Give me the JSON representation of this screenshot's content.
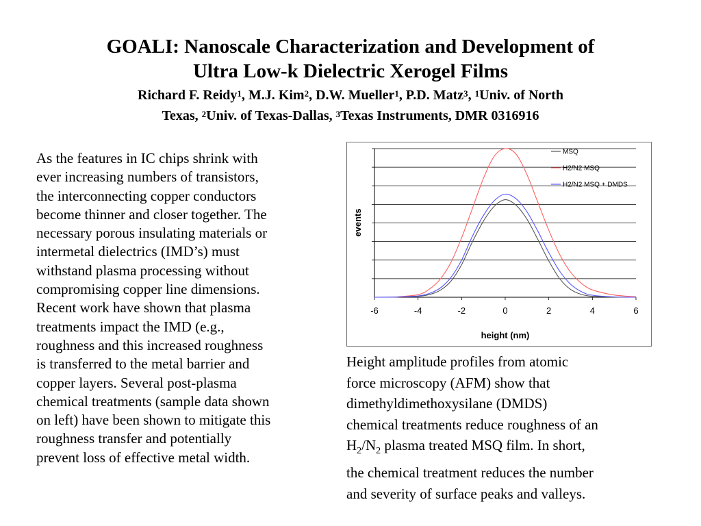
{
  "slide": {
    "title_line1": "GOALI: Nanoscale Characterization and Development of",
    "title_line2": "Ultra Low-k Dielectric Xerogel Films",
    "authors": {
      "a1_name": "Richard F. Reidy",
      "a1_sup": "1",
      "a2_name": ", M.J. Kim",
      "a2_sup": "2",
      "a3_name": ", D.W. Mueller",
      "a3_sup": "1",
      "a4_name": ", P.D. Matz",
      "a4_sup": "3",
      "sep": ", ",
      "aff1_sup": "1",
      "aff1": "Univ. of North",
      "aff1_cont": "Texas, ",
      "aff2_sup": "2",
      "aff2": "Univ. of Texas-Dallas, ",
      "aff3_sup": "3",
      "aff3": "Texas Instruments, DMR  0316916"
    },
    "body": [
      "As the features in IC chips shrink with",
      "ever increasing numbers of transistors,",
      "the interconnecting copper conductors",
      "become thinner and closer together.  The",
      "necessary porous insulating materials or",
      "intermetal dielectrics (IMD’s) must",
      "withstand plasma processing without",
      "compromising copper line dimensions.",
      "Recent work have shown that plasma",
      "treatments impact the IMD (e.g.,",
      "roughness and this increased roughness",
      "is transferred to the metal barrier and",
      "copper layers. Several post-plasma",
      "chemical treatments (sample data shown",
      "on left) have been shown to mitigate this",
      "roughness transfer and potentially",
      "prevent loss of effective metal width."
    ],
    "caption": {
      "line1": "Height amplitude profiles from atomic",
      "line2": "force microscopy (AFM) show that",
      "line3": "dimethyldimethoxysilane (DMDS)",
      "line4": "chemical treatments reduce roughness of an",
      "line5_a": "H",
      "line5_sub1": "2",
      "line5_b": "/N",
      "line5_sub2": "2",
      "line5_c": " plasma treated MSQ film. In short,",
      "line6": "the chemical treatment reduces the number",
      "line7": "and severity of surface peaks and valleys."
    }
  },
  "chart_data": {
    "type": "line",
    "xlabel": "height (nm)",
    "ylabel": "events",
    "xlim": [
      -6,
      6
    ],
    "xticks": [
      "-6",
      "-4",
      "-2",
      "0",
      "2",
      "4",
      "6"
    ],
    "ylim": [
      0,
      8
    ],
    "ygrid_lines": 8,
    "y_tick_labels_shown": false,
    "grid": true,
    "legend_position": "top-right",
    "series": [
      {
        "name": "MSQ",
        "color": "#555555",
        "x": [
          -6,
          -5,
          -4,
          -3.5,
          -3,
          -2.5,
          -2,
          -1.5,
          -1,
          -0.5,
          0,
          0.5,
          1,
          1.5,
          2,
          2.5,
          3,
          3.5,
          4,
          5,
          6
        ],
        "y": [
          0,
          0.01,
          0.05,
          0.14,
          0.36,
          0.85,
          1.75,
          3.0,
          4.1,
          4.9,
          5.25,
          4.95,
          4.2,
          3.1,
          1.95,
          1.0,
          0.42,
          0.15,
          0.05,
          0.01,
          0
        ]
      },
      {
        "name": "H2/N2 MSQ",
        "color": "#ff6060",
        "x": [
          -6,
          -5,
          -4,
          -3.5,
          -3,
          -2.5,
          -2,
          -1.5,
          -1,
          -0.5,
          0,
          0.5,
          1,
          1.5,
          2,
          2.5,
          3,
          3.5,
          4,
          5,
          6
        ],
        "y": [
          0,
          0.02,
          0.14,
          0.42,
          0.95,
          1.85,
          3.2,
          4.8,
          6.4,
          7.6,
          8.0,
          7.7,
          6.6,
          5.1,
          3.6,
          2.3,
          1.35,
          0.75,
          0.4,
          0.12,
          0.03
        ]
      },
      {
        "name": "H2/N2 MSQ + DMDS",
        "color": "#5555ff",
        "x": [
          -6,
          -5,
          -4,
          -3.5,
          -3,
          -2.5,
          -2,
          -1.5,
          -1,
          -0.5,
          0,
          0.5,
          1,
          1.5,
          2,
          2.5,
          3,
          3.5,
          4,
          5,
          6
        ],
        "y": [
          0,
          0.01,
          0.07,
          0.2,
          0.48,
          1.05,
          2.0,
          3.3,
          4.4,
          5.2,
          5.55,
          5.3,
          4.6,
          3.55,
          2.4,
          1.4,
          0.7,
          0.3,
          0.11,
          0.02,
          0
        ]
      }
    ]
  }
}
